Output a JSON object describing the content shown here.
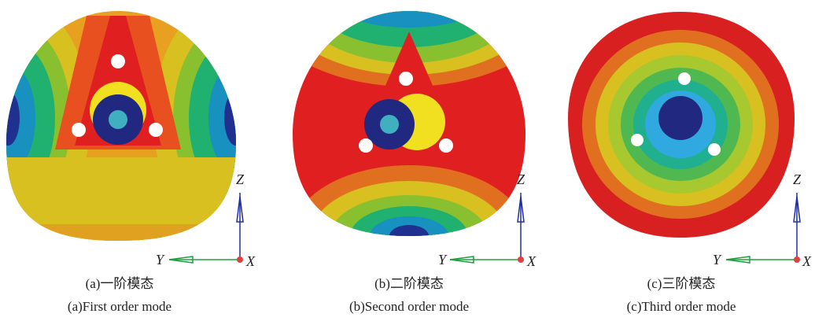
{
  "panels": [
    {
      "caption_cn": "(a)一阶模态",
      "caption_en": "(a)First order mode",
      "axes": {
        "z": "Z",
        "y": "Y",
        "x": "X"
      }
    },
    {
      "caption_cn": "(b)二阶模态",
      "caption_en": "(b)Second order mode",
      "axes": {
        "z": "Z",
        "y": "Y",
        "x": "X"
      }
    },
    {
      "caption_cn": "(c)三阶模态",
      "caption_en": "(c)Third order mode",
      "axes": {
        "z": "Z",
        "y": "Y",
        "x": "X"
      }
    }
  ]
}
